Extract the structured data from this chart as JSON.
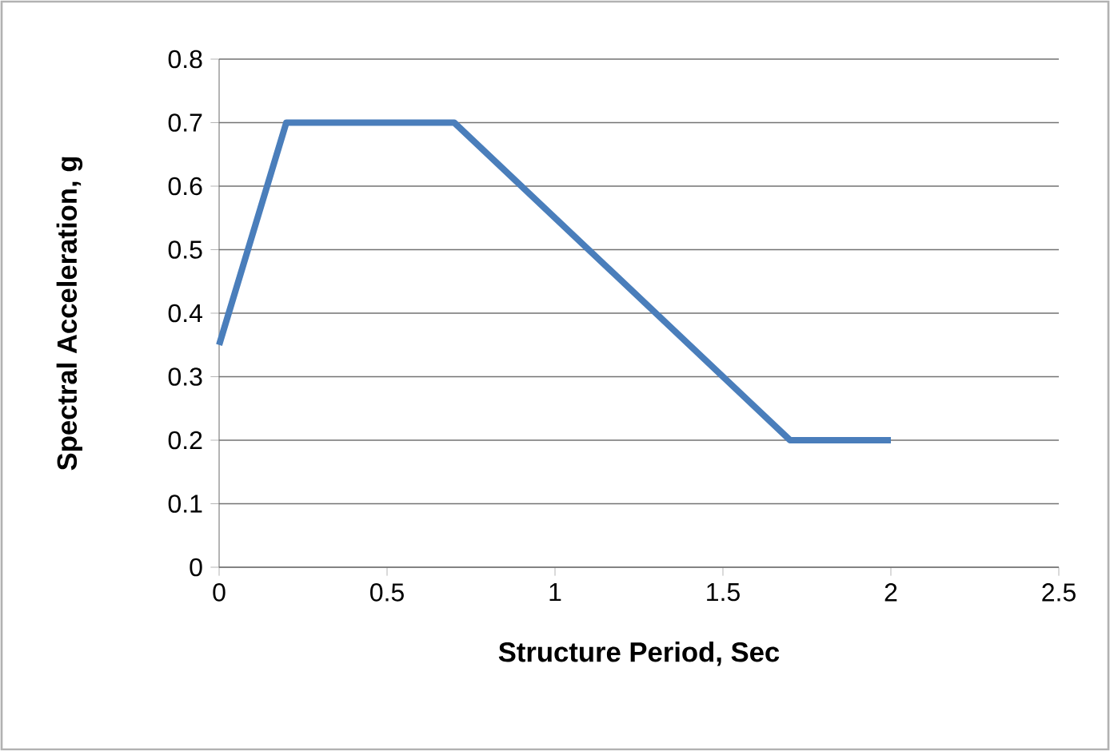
{
  "chart_data": {
    "type": "line",
    "xlabel": "Structure Period, Sec",
    "ylabel": "Spectral Acceleration, g",
    "series": [
      {
        "color": "#4a7ebb",
        "x": [
          0,
          0.2,
          0.7,
          1.7,
          2
        ],
        "values": [
          0.35,
          0.7,
          0.7,
          0.2,
          0.2
        ]
      }
    ],
    "xlim": [
      0,
      2.5
    ],
    "xticks": [
      0,
      0.5,
      1,
      1.5,
      2,
      2.5
    ],
    "ylim": [
      0,
      0.8
    ],
    "yticks": [
      0,
      0.1,
      0.2,
      0.3,
      0.4,
      0.5,
      0.6,
      0.7,
      0.8
    ],
    "grid": "y",
    "marker": "none",
    "line_style": "solid"
  }
}
